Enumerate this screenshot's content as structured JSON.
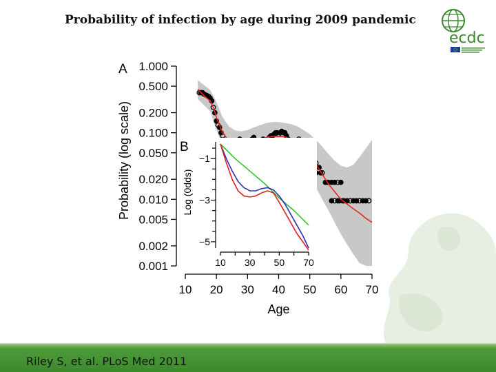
{
  "slide": {
    "title": "Probability of infection by age during 2009 pandemic",
    "citation": "Riley S, et al. PLoS Med 2011",
    "logo_text": "ecdc"
  },
  "chart_data": [
    {
      "panel": "A",
      "type": "scatter",
      "title": "",
      "xlabel": "Age",
      "ylabel": "Probability (log scale)",
      "xlim": [
        10,
        70
      ],
      "ylim": [
        0.001,
        1.0
      ],
      "y_scale": "log",
      "x_ticks": [
        10,
        20,
        30,
        40,
        50,
        60,
        70
      ],
      "y_ticks": [
        0.001,
        0.002,
        0.005,
        0.01,
        0.02,
        0.05,
        0.1,
        0.2,
        0.5,
        1.0
      ],
      "y_tick_labels": [
        "0.001",
        "0.002",
        "0.005",
        "0.010",
        "0.020",
        "0.050",
        "0.100",
        "0.200",
        "0.500",
        "1.000"
      ],
      "x_tick_labels": [
        "10",
        "20",
        "30",
        "40",
        "50",
        "60",
        "70"
      ],
      "fit_line": {
        "name": "model fit",
        "color": "#e8261c",
        "x": [
          14,
          16,
          18,
          19,
          20,
          21,
          22,
          24,
          26,
          28,
          30,
          32,
          34,
          36,
          38,
          40,
          42,
          44,
          46,
          48,
          50,
          52,
          54,
          56,
          58,
          60,
          62,
          64,
          66,
          68,
          70
        ],
        "y": [
          0.45,
          0.36,
          0.3,
          0.24,
          0.17,
          0.13,
          0.1,
          0.075,
          0.065,
          0.063,
          0.065,
          0.07,
          0.078,
          0.085,
          0.088,
          0.088,
          0.087,
          0.08,
          0.07,
          0.058,
          0.045,
          0.033,
          0.024,
          0.017,
          0.013,
          0.01,
          0.0085,
          0.0072,
          0.0062,
          0.0052,
          0.0045
        ]
      },
      "confidence_band": {
        "color": "#c8c8c8",
        "x": [
          14,
          16,
          18,
          20,
          22,
          24,
          26,
          28,
          30,
          32,
          34,
          36,
          38,
          40,
          42,
          44,
          46,
          48,
          50,
          52,
          54,
          56,
          58,
          60,
          62,
          64,
          66,
          68,
          70
        ],
        "upper": [
          0.62,
          0.52,
          0.44,
          0.29,
          0.17,
          0.125,
          0.108,
          0.105,
          0.11,
          0.12,
          0.13,
          0.14,
          0.145,
          0.145,
          0.14,
          0.135,
          0.125,
          0.11,
          0.095,
          0.078,
          0.062,
          0.048,
          0.038,
          0.032,
          0.03,
          0.033,
          0.043,
          0.058,
          0.078
        ],
        "lower": [
          0.32,
          0.26,
          0.21,
          0.11,
          0.062,
          0.045,
          0.04,
          0.039,
          0.041,
          0.045,
          0.05,
          0.055,
          0.057,
          0.057,
          0.056,
          0.05,
          0.041,
          0.032,
          0.023,
          0.015,
          0.01,
          0.0068,
          0.0045,
          0.003,
          0.0021,
          0.0015,
          0.0011,
          0.001,
          0.001
        ]
      },
      "points": [
        [
          14.5,
          0.4
        ],
        [
          15,
          0.4
        ],
        [
          15.5,
          0.4
        ],
        [
          16,
          0.38
        ],
        [
          16.5,
          0.37
        ],
        [
          17,
          0.36
        ],
        [
          17.5,
          0.35
        ],
        [
          18,
          0.33
        ],
        [
          18.5,
          0.3
        ],
        [
          19,
          0.24
        ],
        [
          19.5,
          0.2
        ],
        [
          20,
          0.15
        ],
        [
          20.5,
          0.13
        ],
        [
          21,
          0.12
        ],
        [
          21.5,
          0.1
        ],
        [
          22,
          0.09
        ],
        [
          23,
          0.075
        ],
        [
          24,
          0.065
        ],
        [
          25,
          0.06
        ],
        [
          26,
          0.06
        ],
        [
          27,
          0.06
        ],
        [
          28,
          0.06
        ],
        [
          29,
          0.06
        ],
        [
          30,
          0.06
        ],
        [
          31,
          0.06
        ],
        [
          25.5,
          0.075
        ],
        [
          27.5,
          0.08
        ],
        [
          29.5,
          0.075
        ],
        [
          31.5,
          0.08
        ],
        [
          32,
          0.085
        ],
        [
          32.5,
          0.075
        ],
        [
          33,
          0.07
        ],
        [
          33.5,
          0.065
        ],
        [
          34,
          0.065
        ],
        [
          34.5,
          0.075
        ],
        [
          35,
          0.08
        ],
        [
          35.5,
          0.075
        ],
        [
          36,
          0.07
        ],
        [
          36.5,
          0.075
        ],
        [
          37,
          0.085
        ],
        [
          37.5,
          0.09
        ],
        [
          38,
          0.09
        ],
        [
          38.5,
          0.095
        ],
        [
          39,
          0.1
        ],
        [
          39.5,
          0.1
        ],
        [
          40,
          0.095
        ],
        [
          40.5,
          0.1
        ],
        [
          41,
          0.105
        ],
        [
          41.5,
          0.1
        ],
        [
          42,
          0.1
        ],
        [
          42.5,
          0.09
        ],
        [
          43,
          0.08
        ],
        [
          43.5,
          0.07
        ],
        [
          44,
          0.065
        ],
        [
          44.5,
          0.06
        ],
        [
          45,
          0.06
        ],
        [
          45.5,
          0.065
        ],
        [
          46,
          0.07
        ],
        [
          46.5,
          0.075
        ],
        [
          47,
          0.07
        ],
        [
          47.5,
          0.065
        ],
        [
          48,
          0.06
        ],
        [
          48.5,
          0.055
        ],
        [
          49,
          0.06
        ],
        [
          49.5,
          0.055
        ],
        [
          50,
          0.05
        ],
        [
          50.5,
          0.045
        ],
        [
          33.5,
          0.06
        ],
        [
          35.5,
          0.06
        ],
        [
          40.5,
          0.06
        ],
        [
          42.5,
          0.055
        ],
        [
          44.5,
          0.07
        ],
        [
          46.5,
          0.08
        ],
        [
          46,
          0.04
        ],
        [
          47,
          0.035
        ],
        [
          48,
          0.03
        ],
        [
          49,
          0.03
        ],
        [
          50,
          0.035
        ],
        [
          51,
          0.03
        ],
        [
          52,
          0.025
        ],
        [
          51,
          0.04
        ],
        [
          52,
          0.035
        ],
        [
          53,
          0.03
        ],
        [
          53.5,
          0.025
        ],
        [
          54,
          0.025
        ],
        [
          55,
          0.018
        ],
        [
          55.5,
          0.018
        ],
        [
          56,
          0.018
        ],
        [
          57,
          0.018
        ],
        [
          58,
          0.018
        ],
        [
          59,
          0.018
        ],
        [
          60,
          0.018
        ],
        [
          57,
          0.0095
        ],
        [
          58,
          0.0095
        ],
        [
          59,
          0.0095
        ],
        [
          59.5,
          0.0095
        ],
        [
          60.5,
          0.0095
        ],
        [
          61,
          0.0095
        ],
        [
          62,
          0.0095
        ],
        [
          63,
          0.0095
        ],
        [
          64,
          0.0095
        ],
        [
          65,
          0.0095
        ],
        [
          66,
          0.0095
        ],
        [
          67,
          0.0095
        ],
        [
          68,
          0.0095
        ],
        [
          69,
          0.0095
        ]
      ]
    },
    {
      "panel": "B",
      "type": "line",
      "title": "",
      "xlabel": "",
      "ylabel": "Log (0dds)",
      "xlim": [
        10,
        70
      ],
      "ylim": [
        -5.3,
        -0.2
      ],
      "x_ticks": [
        10,
        30,
        50,
        70
      ],
      "y_ticks": [
        -1,
        -3,
        -5
      ],
      "x_tick_labels": [
        "10",
        "30",
        "50",
        "70"
      ],
      "y_tick_labels": [
        "−1",
        "−3",
        "−5"
      ],
      "series": [
        {
          "name": "green",
          "color": "#2ec428",
          "x": [
            10,
            20,
            30,
            40,
            50,
            60,
            70
          ],
          "y": [
            -0.3,
            -1.0,
            -1.6,
            -2.2,
            -2.9,
            -3.5,
            -4.2
          ]
        },
        {
          "name": "blue",
          "color": "#2d2fb8",
          "x": [
            10,
            14,
            18,
            22,
            26,
            30,
            34,
            38,
            42,
            46,
            50,
            54,
            58,
            62,
            66,
            70
          ],
          "y": [
            -0.3,
            -1.0,
            -1.6,
            -2.1,
            -2.4,
            -2.55,
            -2.55,
            -2.45,
            -2.4,
            -2.5,
            -2.8,
            -3.2,
            -3.7,
            -4.2,
            -4.7,
            -5.3
          ]
        },
        {
          "name": "red",
          "color": "#e02020",
          "x": [
            10,
            14,
            18,
            22,
            26,
            30,
            34,
            38,
            42,
            46,
            50,
            54,
            58,
            62,
            66,
            70
          ],
          "y": [
            -0.3,
            -1.2,
            -2.0,
            -2.55,
            -2.8,
            -2.85,
            -2.8,
            -2.65,
            -2.55,
            -2.65,
            -3.1,
            -3.6,
            -4.1,
            -4.6,
            -5.0,
            -5.5
          ]
        }
      ]
    }
  ]
}
